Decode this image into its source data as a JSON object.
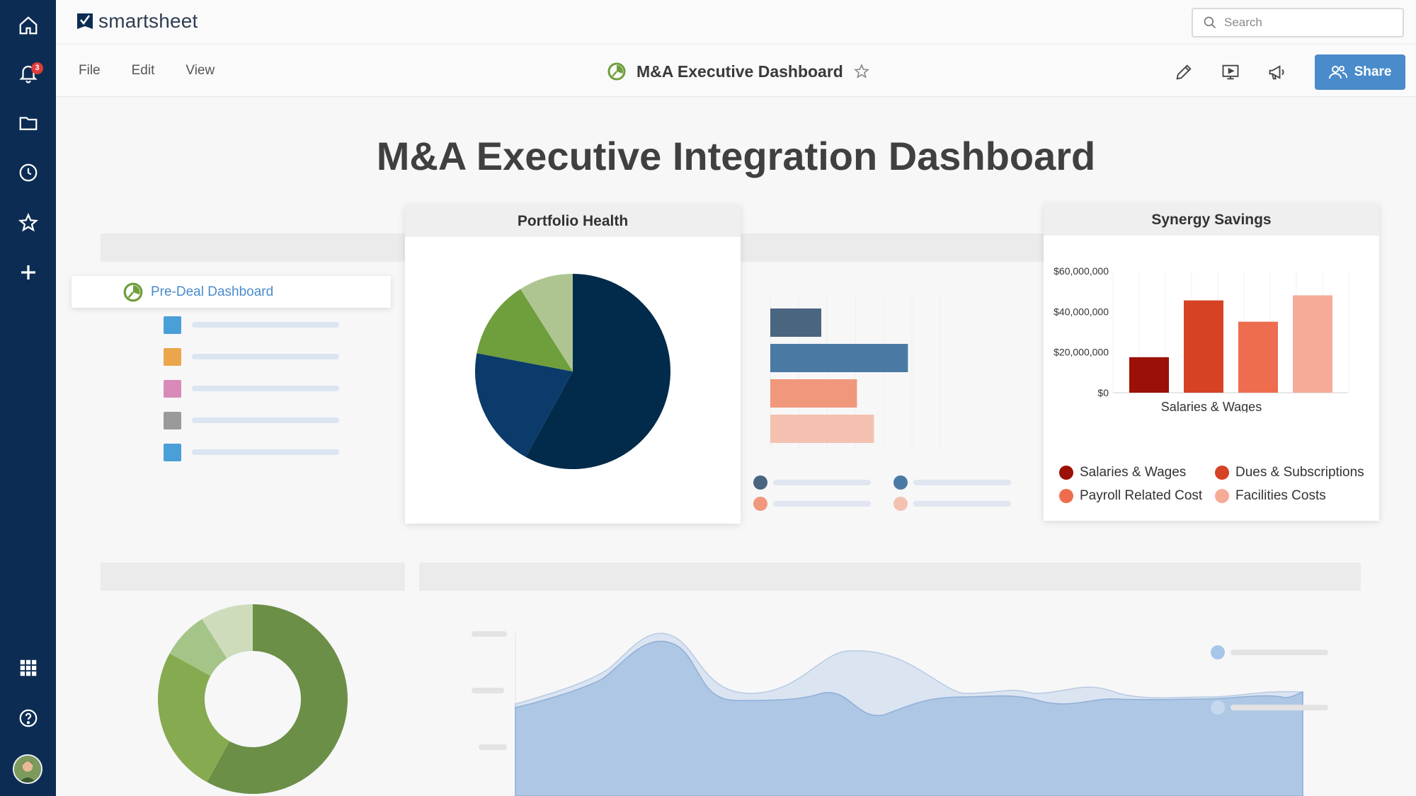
{
  "app": {
    "logo_text": "smartsheet",
    "brand_color": "#0c2c53",
    "accent": "#4a8bcb"
  },
  "rail": {
    "items": [
      "home-icon",
      "bell-icon",
      "folder-icon",
      "clock-icon",
      "star-icon",
      "plus-icon"
    ],
    "notification_count": "3",
    "bottom": [
      "apps-grid-icon",
      "help-icon",
      "avatar"
    ]
  },
  "search": {
    "placeholder": "Search"
  },
  "menu": {
    "file": "File",
    "edit": "Edit",
    "view": "View"
  },
  "document": {
    "title": "M&A Executive Dashboard",
    "favorite": false
  },
  "toolbar": {
    "share_label": "Share",
    "icons": [
      "pencil-icon",
      "present-icon",
      "megaphone-icon"
    ]
  },
  "dashboard": {
    "title": "M&A Executive Integration Dashboard",
    "link_widget": {
      "label": "Pre-Deal Dashboard"
    },
    "placeholder_list_colors": [
      "#4a9fd8",
      "#eba54b",
      "#d98ab8",
      "#9a9a9a",
      "#4a9fd8"
    ],
    "portfolio": {
      "title": "Portfolio Health",
      "slices_colors": [
        "#022a4a",
        "#0b3b6b",
        "#6f9e3c",
        "#aec592"
      ]
    },
    "synergy": {
      "title": "Synergy Savings",
      "xlabel": "Salaries & Wages"
    }
  },
  "chart_data": [
    {
      "type": "pie",
      "title": "Portfolio Health",
      "values": [
        0.58,
        0.2,
        0.13,
        0.09
      ]
    },
    {
      "type": "bar",
      "orientation": "horizontal",
      "values": [
        0.3,
        0.81,
        0.51,
        0.61
      ],
      "colors": [
        "#4a6580",
        "#4a7aa4",
        "#f0977c",
        "#f4c1b1"
      ]
    },
    {
      "type": "bar",
      "title": "Synergy Savings",
      "xlabel": "Salaries & Wages",
      "ylim": [
        0,
        60000000
      ],
      "yticks": [
        "$60,000,000",
        "$40,000,000",
        "$20,000,000",
        "$0"
      ],
      "series": [
        {
          "name": "Salaries & Wages",
          "value": 17500000,
          "color": "#9b1007"
        },
        {
          "name": "Dues & Subscriptions",
          "value": 45500000,
          "color": "#d64324"
        },
        {
          "name": "Payroll Related Cost",
          "value": 35000000,
          "color": "#ee6d4f"
        },
        {
          "name": "Facilities Costs",
          "value": 48000000,
          "color": "#f5ab97"
        }
      ]
    },
    {
      "type": "pie",
      "donut": true,
      "values": [
        0.58,
        0.25,
        0.08,
        0.09
      ],
      "colors": [
        "#6b8f47",
        "#86aa50",
        "#a5c487",
        "#cfdcbc"
      ]
    },
    {
      "type": "area",
      "series_colors": [
        "#dbe4f1",
        "#aec7e4"
      ]
    }
  ]
}
